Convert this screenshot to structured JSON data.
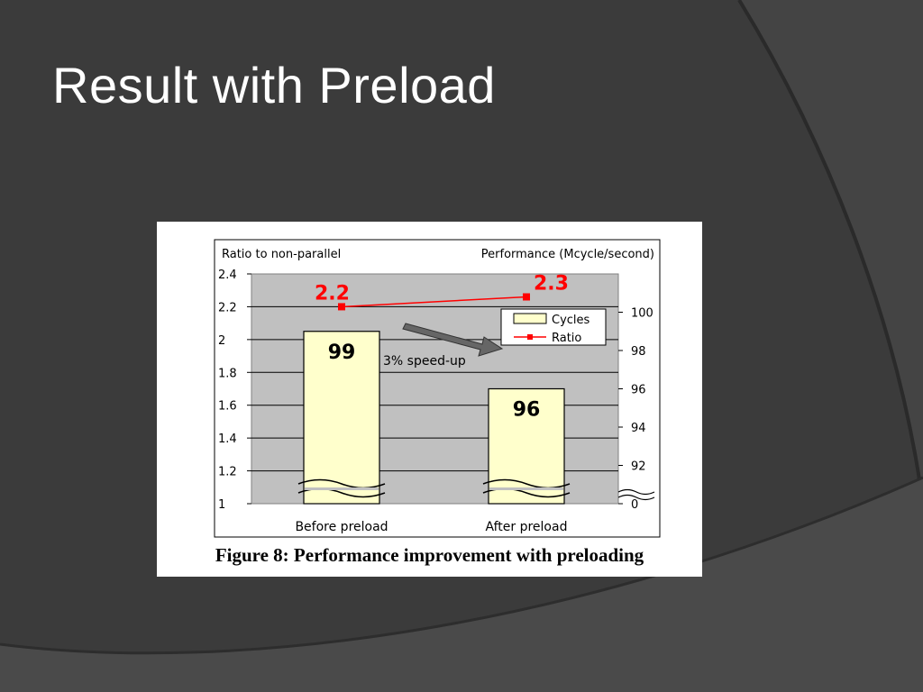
{
  "slide": {
    "title": "Result with Preload"
  },
  "figure": {
    "caption": "Figure 8: Performance improvement with preloading"
  },
  "colors": {
    "background": "#3b3b3b",
    "bar_fill": "#ffffcc",
    "ratio_line": "#ff0000",
    "plot_area": "#c0c0c0",
    "arrow": "#666666"
  },
  "chart_data": {
    "type": "bar",
    "categories": [
      "Before preload",
      "After preload"
    ],
    "left_axis": {
      "label": "Ratio to non-parallel",
      "range": [
        1,
        2.4
      ],
      "ticks": [
        "1",
        "1.2",
        "1.4",
        "1.6",
        "1.8",
        "2",
        "2.2",
        "2.4"
      ]
    },
    "right_axis": {
      "label": "Performance (Mcycle/second)",
      "range": [
        90,
        102
      ],
      "ticks": [
        "0",
        "92",
        "94",
        "96",
        "98",
        "100"
      ],
      "broken": true
    },
    "series": [
      {
        "name": "Cycles",
        "type": "bar",
        "axis": "right",
        "values": [
          99,
          96
        ],
        "labels": [
          "99",
          "96"
        ]
      },
      {
        "name": "Ratio",
        "type": "line",
        "axis": "left",
        "values": [
          2.2,
          2.26
        ],
        "labels": [
          "2.2",
          "2.3"
        ]
      }
    ],
    "legend": {
      "position": "top-right",
      "entries": [
        "Cycles",
        "Ratio"
      ]
    },
    "annotation": "3% speed-up",
    "grid": true
  }
}
